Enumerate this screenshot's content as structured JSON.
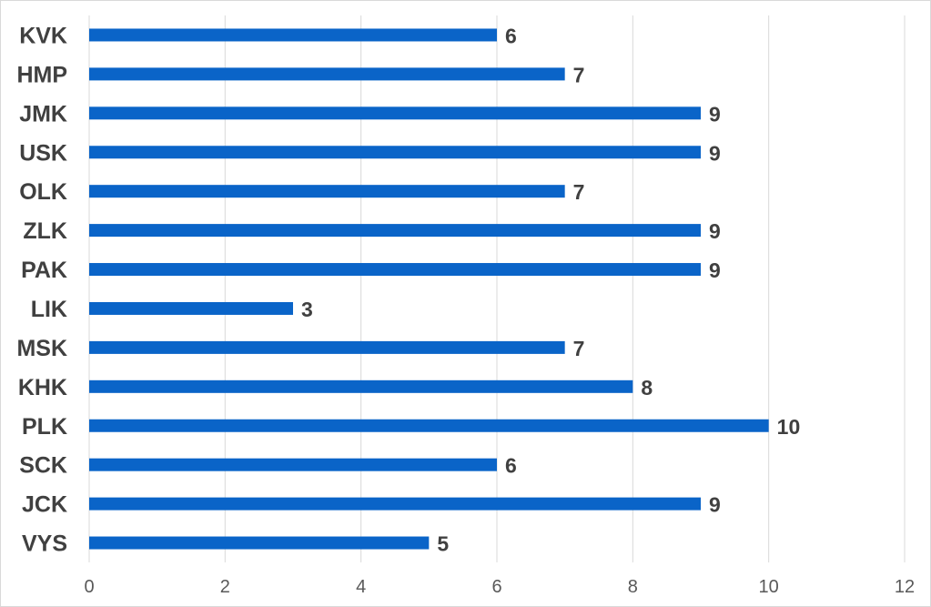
{
  "chart_data": {
    "type": "bar",
    "orientation": "horizontal",
    "title": "",
    "xlabel": "",
    "ylabel": "",
    "categories": [
      "KVK",
      "HMP",
      "JMK",
      "USK",
      "OLK",
      "ZLK",
      "PAK",
      "LIK",
      "MSK",
      "KHK",
      "PLK",
      "SCK",
      "JCK",
      "VYS"
    ],
    "values": [
      6,
      7,
      9,
      9,
      7,
      9,
      9,
      3,
      7,
      8,
      10,
      6,
      9,
      5
    ],
    "xlim": [
      0,
      12
    ],
    "xticks": [
      0,
      2,
      4,
      6,
      8,
      10,
      12
    ],
    "grid": "vertical",
    "data_labels": true,
    "bar_color": "#0a64c8"
  }
}
